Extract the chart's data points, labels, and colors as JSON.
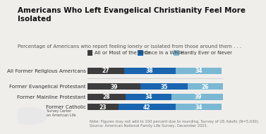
{
  "title": "Americans Who Left Evangelical Christianity Feel More\nIsolated",
  "subtitle": "Percentage of Americans who report feeling lonely or isolated from those around them . . .",
  "categories": [
    "All Former Religious Americans",
    "Former Evangelical Protestant",
    "Former Mainline Protestant",
    "Former Catholic"
  ],
  "series": [
    {
      "label": "All or Most of the Time",
      "color": "#3d3d3d",
      "values": [
        27,
        39,
        28,
        23
      ]
    },
    {
      "label": "Once in a While",
      "color": "#1a65b0",
      "values": [
        38,
        35,
        34,
        42
      ]
    },
    {
      "label": "Hardly Ever or Never",
      "color": "#7bb8d4",
      "values": [
        34,
        26,
        39,
        34
      ]
    }
  ],
  "background_color": "#f0eeeb",
  "bar_height": 0.55,
  "title_fontsize": 7.5,
  "subtitle_fontsize": 5.0,
  "legend_fontsize": 5.0,
  "label_fontsize": 5.5,
  "tick_fontsize": 5.2,
  "note_fontsize": 3.8,
  "note": "Note: Figures may not add to 100 percent due to rounding. Survey of US Adults (N=5,030).\nSource: American National Family Life Survey, December 2021."
}
